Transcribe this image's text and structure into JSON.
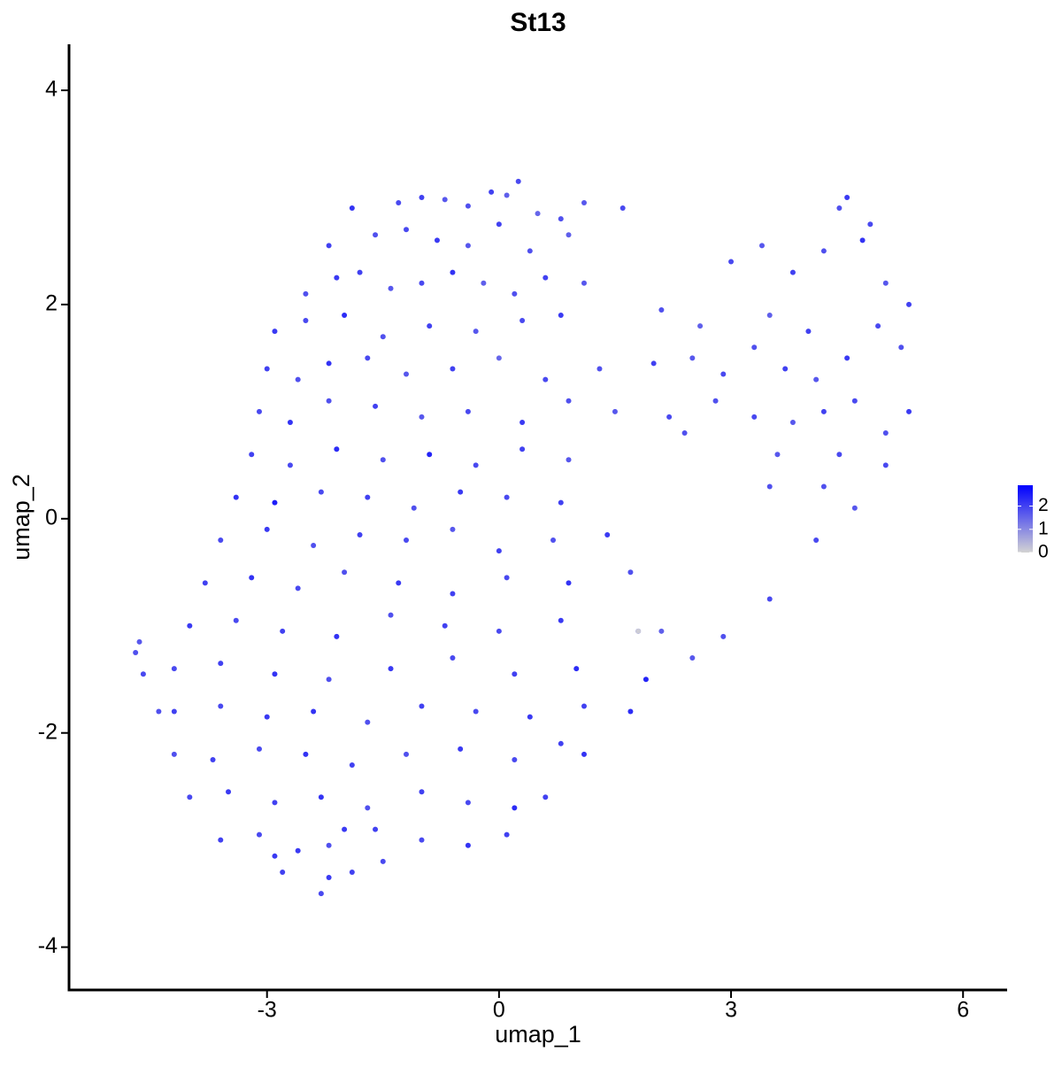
{
  "chart_data": {
    "type": "scatter",
    "title": "St13",
    "xlabel": "umap_1",
    "ylabel": "umap_2",
    "xlim": [
      -5.56,
      6.57
    ],
    "ylim": [
      -4.4,
      4.43
    ],
    "xticks": [
      -3,
      0,
      3,
      6
    ],
    "yticks": [
      -4,
      -2,
      0,
      2,
      4
    ],
    "color_low": "#d3d3d3",
    "color_high": "#0000ff",
    "color_lim": [
      0,
      2.9
    ],
    "color_ticks": [
      0,
      1,
      2
    ],
    "x": [
      -1.3,
      -1.0,
      -0.7,
      -0.4,
      -0.1,
      0.1,
      0.25,
      0.5,
      0.8,
      1.1,
      -2.2,
      -1.9,
      -1.6,
      -1.2,
      -0.8,
      -0.4,
      0.0,
      0.4,
      0.9,
      1.6,
      -2.5,
      -2.1,
      -1.8,
      -1.4,
      -1.0,
      -0.6,
      -0.2,
      0.2,
      0.6,
      1.1,
      -2.9,
      -2.5,
      -2.0,
      -1.5,
      -0.9,
      -0.3,
      0.3,
      0.8,
      2.1,
      2.6,
      3.0,
      3.4,
      3.8,
      4.2,
      4.5,
      4.8,
      5.0,
      5.3,
      4.4,
      4.7,
      -3.0,
      -2.6,
      -2.2,
      -1.7,
      -1.2,
      -0.6,
      0.0,
      0.6,
      1.3,
      2.0,
      2.5,
      2.9,
      3.3,
      3.7,
      4.1,
      4.5,
      4.9,
      5.2,
      3.5,
      4.0,
      -3.1,
      -2.7,
      -2.2,
      -1.6,
      -1.0,
      -0.4,
      0.3,
      0.9,
      1.5,
      2.2,
      2.8,
      3.3,
      3.8,
      4.2,
      4.6,
      5.0,
      5.3,
      3.6,
      4.4,
      2.4,
      -3.2,
      -2.7,
      -2.1,
      -1.5,
      -0.9,
      -0.3,
      0.3,
      0.9,
      4.2,
      5.0,
      -3.4,
      -2.9,
      -2.3,
      -1.7,
      -1.1,
      -0.5,
      0.1,
      0.8,
      3.5,
      4.6,
      -3.6,
      -3.0,
      -2.4,
      -1.8,
      -1.2,
      -0.6,
      0.0,
      0.7,
      1.4,
      4.1,
      -3.8,
      -3.2,
      -2.6,
      -2.0,
      -1.3,
      -0.6,
      0.1,
      0.9,
      1.7,
      3.5,
      -4.0,
      -3.4,
      -2.8,
      -2.1,
      -1.4,
      -0.7,
      0.0,
      0.8,
      1.8,
      2.9,
      -4.2,
      -3.6,
      -2.9,
      -2.2,
      -1.4,
      -0.6,
      0.2,
      1.0,
      1.9,
      2.5,
      -4.2,
      -3.6,
      -3.0,
      -2.4,
      -1.7,
      -1.0,
      -0.3,
      0.4,
      1.1,
      1.7,
      -4.2,
      -3.7,
      -3.1,
      -2.5,
      -1.9,
      -1.2,
      -0.5,
      0.2,
      0.8,
      1.1,
      -4.0,
      -3.5,
      -2.9,
      -2.3,
      -1.7,
      -1.0,
      -0.4,
      0.2,
      0.6,
      -2.0,
      -3.6,
      -3.1,
      -2.6,
      -2.2,
      -1.6,
      -1.0,
      -0.4,
      0.1,
      -1.5,
      -2.9,
      -2.8,
      -2.3,
      -2.2,
      -1.9,
      -4.7,
      -4.65,
      -4.6,
      -4.4,
      1.8,
      2.1
    ],
    "y": [
      2.95,
      3.0,
      2.98,
      2.92,
      3.05,
      3.02,
      3.15,
      2.85,
      2.8,
      2.95,
      2.55,
      2.9,
      2.65,
      2.7,
      2.6,
      2.55,
      2.75,
      2.5,
      2.65,
      2.9,
      2.1,
      2.25,
      2.3,
      2.15,
      2.2,
      2.3,
      2.2,
      2.1,
      2.25,
      2.2,
      1.75,
      1.85,
      1.9,
      1.7,
      1.8,
      1.75,
      1.85,
      1.9,
      1.95,
      1.8,
      2.4,
      2.55,
      2.3,
      2.5,
      3.0,
      2.75,
      2.2,
      2.0,
      2.9,
      2.6,
      1.4,
      1.3,
      1.45,
      1.5,
      1.35,
      1.4,
      1.5,
      1.3,
      1.4,
      1.45,
      1.5,
      1.35,
      1.6,
      1.4,
      1.3,
      1.5,
      1.8,
      1.6,
      1.9,
      1.75,
      1.0,
      0.9,
      1.1,
      1.05,
      0.95,
      1.0,
      0.9,
      1.1,
      1.0,
      0.95,
      1.1,
      0.95,
      0.9,
      1.0,
      1.1,
      0.8,
      1.0,
      0.6,
      0.6,
      0.8,
      0.6,
      0.5,
      0.65,
      0.55,
      0.6,
      0.5,
      0.65,
      0.55,
      0.3,
      0.5,
      0.2,
      0.15,
      0.25,
      0.2,
      0.1,
      0.25,
      0.2,
      0.15,
      0.3,
      0.1,
      -0.2,
      -0.1,
      -0.25,
      -0.15,
      -0.2,
      -0.1,
      -0.3,
      -0.2,
      -0.15,
      -0.2,
      -0.6,
      -0.55,
      -0.65,
      -0.5,
      -0.6,
      -0.7,
      -0.55,
      -0.6,
      -0.5,
      -0.75,
      -1.0,
      -0.95,
      -1.05,
      -1.1,
      -0.9,
      -1.0,
      -1.05,
      -0.95,
      -1.05,
      -1.1,
      -1.4,
      -1.35,
      -1.45,
      -1.5,
      -1.4,
      -1.3,
      -1.45,
      -1.4,
      -1.5,
      -1.3,
      -1.8,
      -1.75,
      -1.85,
      -1.8,
      -1.9,
      -1.75,
      -1.8,
      -1.85,
      -1.75,
      -1.8,
      -2.2,
      -2.25,
      -2.15,
      -2.2,
      -2.3,
      -2.2,
      -2.15,
      -2.25,
      -2.1,
      -2.2,
      -2.6,
      -2.55,
      -2.65,
      -2.6,
      -2.7,
      -2.55,
      -2.65,
      -2.7,
      -2.6,
      -2.9,
      -3.0,
      -2.95,
      -3.1,
      -3.05,
      -2.9,
      -3.0,
      -3.05,
      -2.95,
      -3.2,
      -3.15,
      -3.3,
      -3.5,
      -3.35,
      -3.3,
      -1.25,
      -1.15,
      -1.45,
      -1.8,
      -1.05,
      -1.05
    ],
    "values": [
      1.9,
      2.0,
      1.7,
      1.8,
      2.0,
      1.6,
      1.9,
      1.5,
      1.8,
      1.7,
      2.0,
      2.2,
      1.8,
      1.9,
      2.1,
      1.7,
      2.0,
      1.8,
      1.6,
      1.9,
      1.8,
      2.1,
      2.0,
      1.7,
      1.9,
      2.2,
      1.6,
      1.8,
      2.0,
      1.7,
      2.1,
      1.9,
      2.3,
      1.8,
      2.0,
      1.7,
      1.9,
      2.1,
      1.8,
      1.6,
      1.9,
      1.7,
      2.0,
      1.8,
      2.1,
      1.9,
      1.7,
      2.0,
      1.8,
      2.2,
      2.0,
      1.8,
      2.2,
      1.9,
      1.7,
      2.0,
      1.5,
      1.9,
      1.8,
      2.0,
      1.7,
      1.9,
      1.8,
      2.0,
      1.7,
      2.1,
      1.9,
      1.8,
      1.6,
      2.0,
      1.9,
      2.2,
      1.8,
      2.0,
      1.7,
      1.9,
      2.1,
      1.8,
      1.7,
      1.9,
      1.8,
      1.9,
      1.7,
      2.0,
      1.9,
      1.8,
      2.1,
      1.7,
      1.9,
      1.8,
      2.0,
      1.9,
      2.3,
      1.8,
      2.4,
      1.9,
      2.0,
      1.7,
      1.8,
      1.9,
      2.2,
      2.5,
      1.9,
      2.0,
      1.8,
      2.1,
      1.9,
      2.0,
      1.8,
      1.7,
      1.9,
      2.1,
      1.8,
      2.0,
      1.9,
      1.7,
      2.0,
      1.8,
      2.1,
      1.9,
      2.0,
      2.2,
      1.9,
      1.8,
      2.1,
      2.0,
      1.9,
      2.2,
      1.8,
      1.9,
      2.1,
      1.9,
      2.0,
      2.2,
      1.8,
      2.0,
      1.9,
      2.1,
      2.0,
      1.8,
      1.9,
      2.0,
      2.2,
      1.8,
      2.1,
      1.9,
      2.0,
      2.3,
      2.4,
      1.7,
      2.0,
      1.9,
      2.1,
      2.2,
      1.8,
      2.0,
      1.9,
      2.1,
      2.0,
      2.3,
      1.8,
      2.0,
      1.9,
      2.2,
      2.0,
      1.8,
      2.1,
      1.9,
      2.0,
      2.2,
      1.9,
      2.1,
      2.0,
      2.2,
      1.8,
      2.0,
      1.9,
      2.3,
      2.0,
      2.1,
      2.0,
      1.9,
      2.1,
      1.8,
      2.0,
      1.9,
      2.2,
      2.0,
      1.9,
      2.1,
      2.0,
      1.9,
      2.1,
      2.0,
      1.8,
      1.7,
      1.9,
      1.8,
      0.1,
      1.6
    ]
  }
}
